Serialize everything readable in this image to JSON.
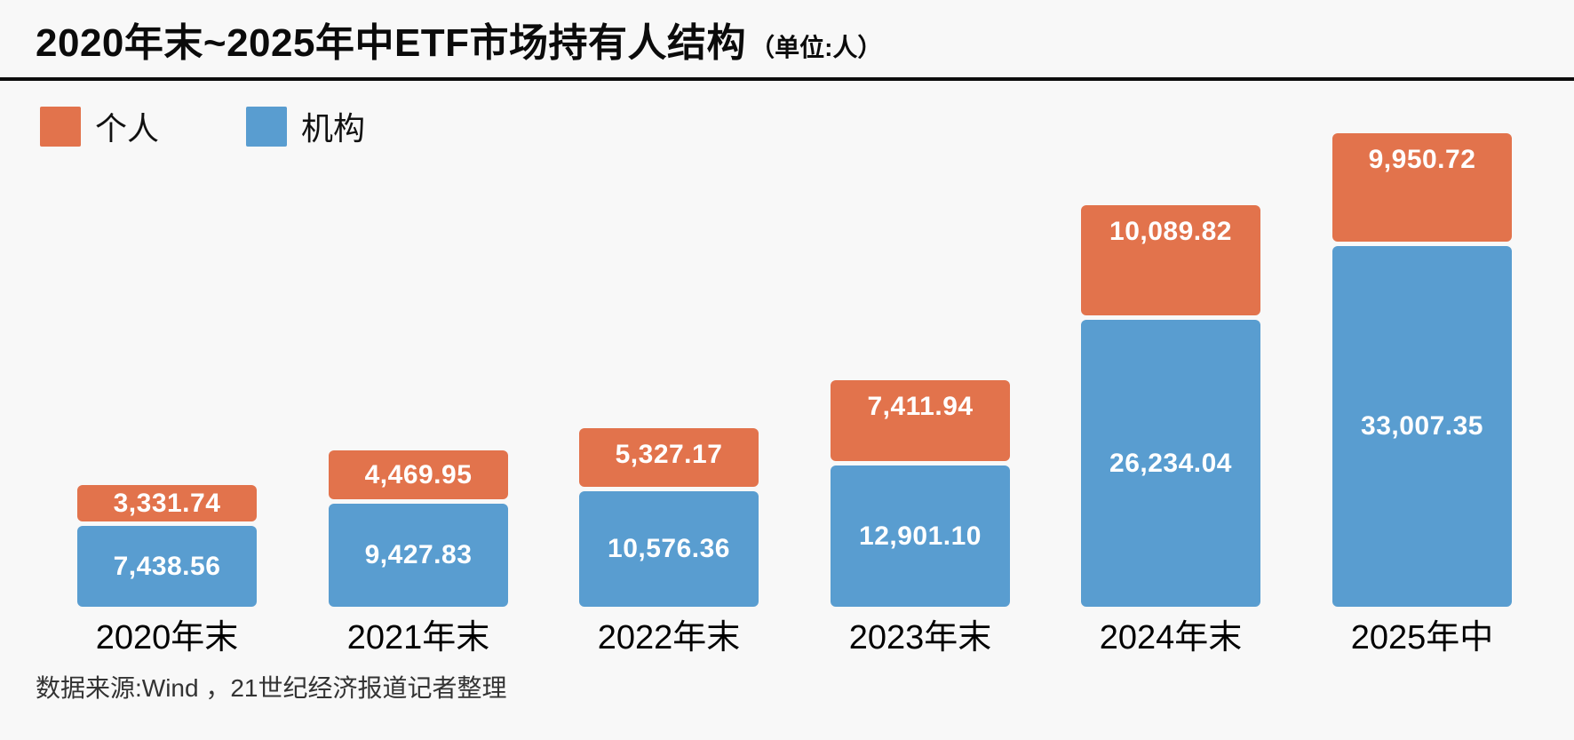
{
  "title": {
    "text": "2020年末~2025年中ETF市场持有人结构",
    "unit": "（单位:人）"
  },
  "legend": {
    "items": [
      {
        "label": "个人",
        "color": "#E2734C"
      },
      {
        "label": "机构",
        "color": "#599DD0"
      }
    ]
  },
  "source_note": "数据来源:Wind ，21世纪经济报道记者整理",
  "chart_data": {
    "type": "bar",
    "stacked": true,
    "orientation": "vertical",
    "title": "2020年末~2025年中ETF市场持有人结构",
    "unit": "人",
    "categories": [
      "2020年末",
      "2021年末",
      "2022年末",
      "2023年末",
      "2024年末",
      "2025年中"
    ],
    "series": [
      {
        "name": "个人",
        "color": "#E2734C",
        "stack_position": "top",
        "values": [
          3331.74,
          4469.95,
          5327.17,
          7411.94,
          10089.82,
          9950.72
        ],
        "labels": [
          "3,331.74",
          "4,469.95",
          "5,327.17",
          "7,411.94",
          "10,089.82",
          "9,950.72"
        ]
      },
      {
        "name": "机构",
        "color": "#599DD0",
        "stack_position": "bottom",
        "values": [
          7438.56,
          9427.83,
          10576.36,
          12901.1,
          26234.04,
          33007.35
        ],
        "labels": [
          "7,438.56",
          "9,427.83",
          "10,576.36",
          "12,901.10",
          "26,234.04",
          "33,007.35"
        ]
      }
    ],
    "value_labels": "inside-white",
    "legend_position": "top-left",
    "grid": false,
    "axes": {
      "x_axis_line": false,
      "y_axis_visible": false
    }
  }
}
